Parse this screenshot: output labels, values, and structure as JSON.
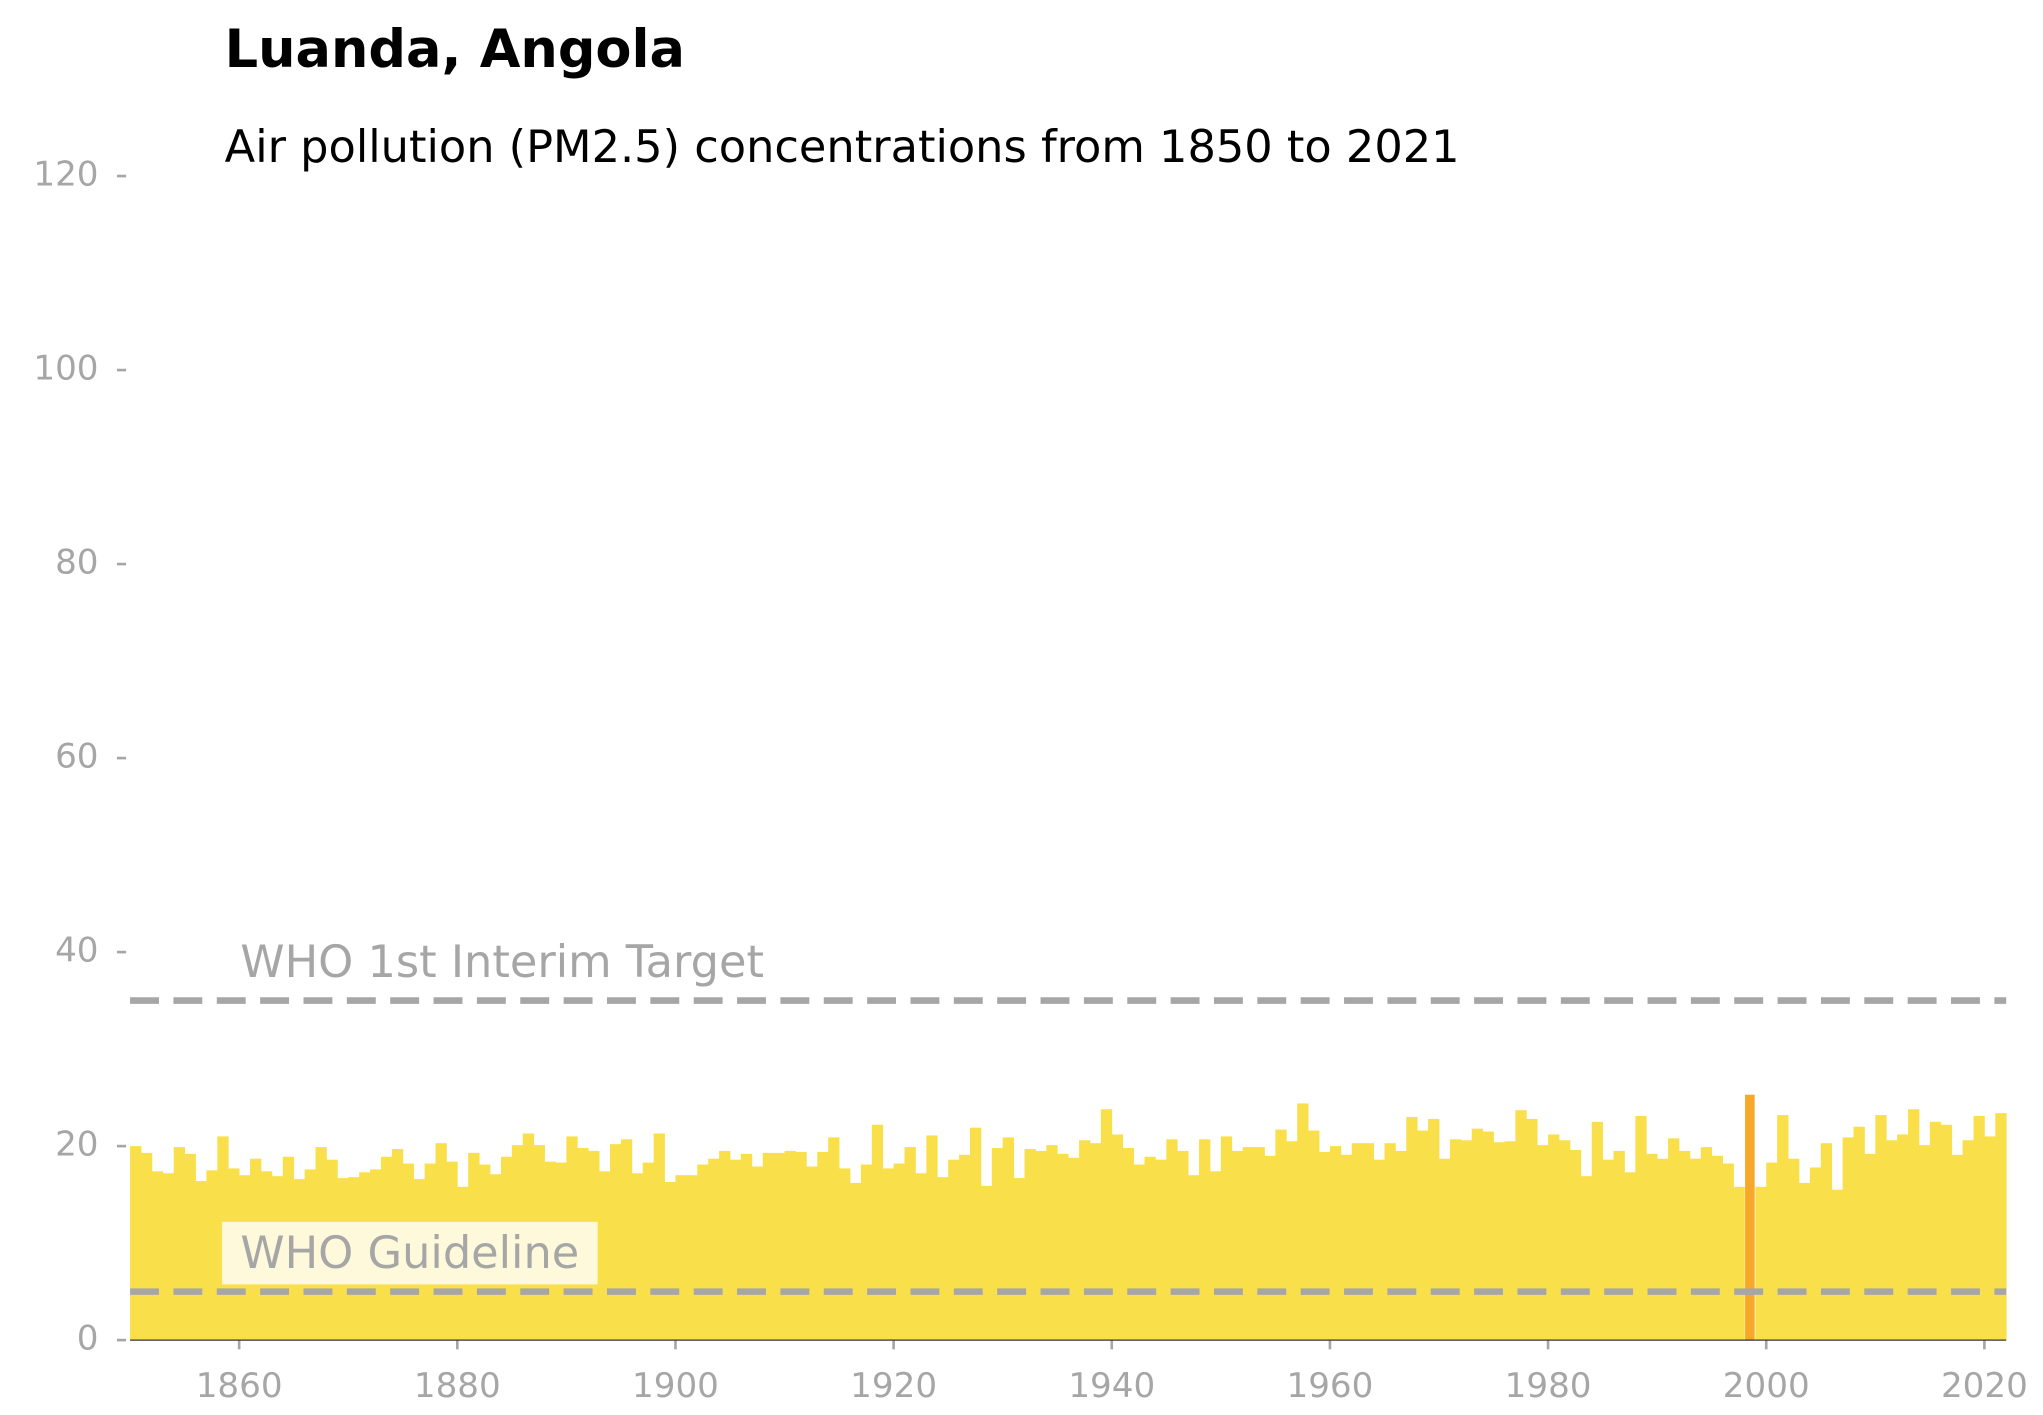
{
  "chart_data": {
    "type": "bar",
    "title": "Luanda, Angola",
    "subtitle": "Air pollution (PM2.5) concentrations from 1850 to 2021",
    "x": [
      1850,
      1851,
      1852,
      1853,
      1854,
      1855,
      1856,
      1857,
      1858,
      1859,
      1860,
      1861,
      1862,
      1863,
      1864,
      1865,
      1866,
      1867,
      1868,
      1869,
      1870,
      1871,
      1872,
      1873,
      1874,
      1875,
      1876,
      1877,
      1878,
      1879,
      1880,
      1881,
      1882,
      1883,
      1884,
      1885,
      1886,
      1887,
      1888,
      1889,
      1890,
      1891,
      1892,
      1893,
      1894,
      1895,
      1896,
      1897,
      1898,
      1899,
      1900,
      1901,
      1902,
      1903,
      1904,
      1905,
      1906,
      1907,
      1908,
      1909,
      1910,
      1911,
      1912,
      1913,
      1914,
      1915,
      1916,
      1917,
      1918,
      1919,
      1920,
      1921,
      1922,
      1923,
      1924,
      1925,
      1926,
      1927,
      1928,
      1929,
      1930,
      1931,
      1932,
      1933,
      1934,
      1935,
      1936,
      1937,
      1938,
      1939,
      1940,
      1941,
      1942,
      1943,
      1944,
      1945,
      1946,
      1947,
      1948,
      1949,
      1950,
      1951,
      1952,
      1953,
      1954,
      1955,
      1956,
      1957,
      1958,
      1959,
      1960,
      1961,
      1962,
      1963,
      1964,
      1965,
      1966,
      1967,
      1968,
      1969,
      1970,
      1971,
      1972,
      1973,
      1974,
      1975,
      1976,
      1977,
      1978,
      1979,
      1980,
      1981,
      1982,
      1983,
      1984,
      1985,
      1986,
      1987,
      1988,
      1989,
      1990,
      1991,
      1992,
      1993,
      1994,
      1995,
      1996,
      1997,
      1998,
      1999,
      2000,
      2001,
      2002,
      2003,
      2004,
      2005,
      2006,
      2007,
      2008,
      2009,
      2010,
      2011,
      2012,
      2013,
      2014,
      2015,
      2016,
      2017,
      2018,
      2019,
      2020,
      2021
    ],
    "values": [
      20,
      19.3,
      17.4,
      17.2,
      19.9,
      19.2,
      16.4,
      17.5,
      21,
      17.7,
      17,
      18.7,
      17.4,
      16.9,
      18.9,
      16.6,
      17.6,
      19.9,
      18.6,
      16.7,
      16.8,
      17.3,
      17.6,
      18.9,
      19.7,
      18.2,
      16.6,
      18.2,
      20.3,
      18.4,
      15.8,
      19.3,
      18.1,
      17.1,
      18.9,
      20.1,
      21.3,
      20.1,
      18.4,
      18.3,
      21,
      19.8,
      19.5,
      17.4,
      20.2,
      20.7,
      17.2,
      18.3,
      21.3,
      16.3,
      17,
      17,
      18.1,
      18.7,
      19.5,
      18.6,
      19.2,
      17.9,
      19.3,
      19.3,
      19.5,
      19.4,
      17.9,
      19.4,
      20.9,
      17.7,
      16.2,
      18.1,
      22.2,
      17.7,
      18.2,
      19.9,
      17.2,
      21.1,
      16.8,
      18.6,
      19.1,
      21.9,
      15.9,
      19.8,
      20.9,
      16.7,
      19.7,
      19.5,
      20.1,
      19.2,
      18.8,
      20.6,
      20.3,
      23.8,
      21.2,
      19.8,
      18.1,
      18.9,
      18.6,
      20.7,
      19.5,
      17,
      20.7,
      17.4,
      21,
      19.5,
      19.9,
      19.9,
      19,
      21.7,
      20.5,
      24.4,
      21.6,
      19.4,
      20,
      19.1,
      20.3,
      20.3,
      18.6,
      20.3,
      19.5,
      23,
      21.6,
      22.8,
      18.7,
      20.7,
      20.6,
      21.8,
      21.5,
      20.4,
      20.5,
      23.7,
      22.8,
      20.1,
      21.2,
      20.6,
      19.6,
      16.9,
      22.5,
      18.6,
      19.5,
      17.3,
      23.1,
      19.2,
      18.7,
      20.8,
      19.5,
      18.7,
      19.9,
      19,
      18.2,
      15.8,
      25.3,
      15.8,
      18.3,
      23.2,
      18.7,
      16.2,
      17.8,
      20.3,
      15.5,
      20.9,
      22,
      19.2,
      23.2,
      20.6,
      21.2,
      23.8,
      20.1,
      22.5,
      22.2,
      19.1,
      20.6,
      23.1,
      21,
      23.4
    ],
    "color": "#f9e04b",
    "highlight": {
      "x": 1998,
      "color": "#f7a82b"
    },
    "xlim": [
      1850,
      2022
    ],
    "xticks": [
      1860,
      1880,
      1900,
      1920,
      1940,
      1960,
      1980,
      2000,
      2020
    ],
    "ylim": [
      0,
      120
    ],
    "yticks": [
      0,
      20,
      40,
      60,
      80,
      100,
      120
    ],
    "reference_lines": [
      {
        "label": "WHO 1st Interim Target",
        "value": 35
      },
      {
        "label": "WHO Guideline",
        "value": 5
      }
    ]
  }
}
